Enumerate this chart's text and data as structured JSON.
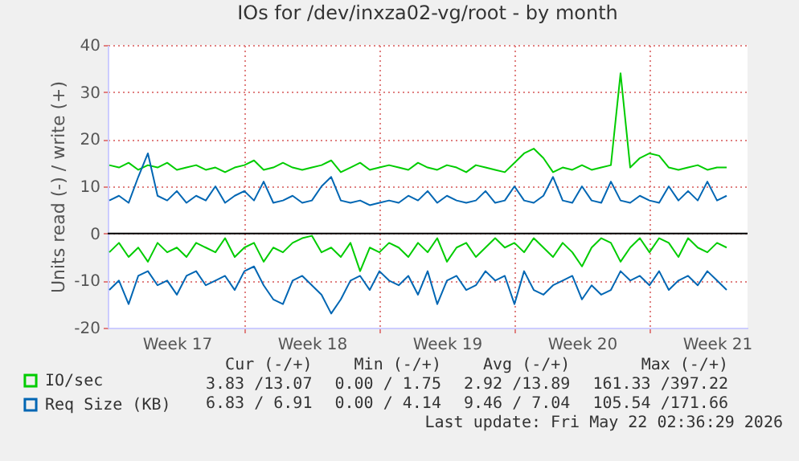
{
  "chart_data": {
    "type": "line",
    "title": "IOs for /dev/inxza02-vg/root - by month",
    "ylabel": "Units read (-) / write (+)",
    "x": [
      "2026-04-20T00:00",
      "2026-04-20T12:00",
      "2026-04-21T00:00",
      "2026-04-21T12:00",
      "2026-04-22T00:00",
      "2026-04-22T12:00",
      "2026-04-23T00:00",
      "2026-04-23T12:00",
      "2026-04-24T00:00",
      "2026-04-24T12:00",
      "2026-04-25T00:00",
      "2026-04-25T12:00",
      "2026-04-26T00:00",
      "2026-04-26T12:00",
      "2026-04-27T00:00",
      "2026-04-27T12:00",
      "2026-04-28T00:00",
      "2026-04-28T12:00",
      "2026-04-29T00:00",
      "2026-04-29T12:00",
      "2026-04-30T00:00",
      "2026-04-30T12:00",
      "2026-05-01T00:00",
      "2026-05-01T12:00",
      "2026-05-02T00:00",
      "2026-05-02T12:00",
      "2026-05-03T00:00",
      "2026-05-03T12:00",
      "2026-05-04T00:00",
      "2026-05-04T12:00",
      "2026-05-05T00:00",
      "2026-05-05T12:00",
      "2026-05-06T00:00",
      "2026-05-06T12:00",
      "2026-05-07T00:00",
      "2026-05-07T12:00",
      "2026-05-08T00:00",
      "2026-05-08T12:00",
      "2026-05-09T00:00",
      "2026-05-09T12:00",
      "2026-05-10T00:00",
      "2026-05-10T12:00",
      "2026-05-11T00:00",
      "2026-05-11T12:00",
      "2026-05-12T00:00",
      "2026-05-12T12:00",
      "2026-05-13T00:00",
      "2026-05-13T12:00",
      "2026-05-14T00:00",
      "2026-05-14T12:00",
      "2026-05-15T00:00",
      "2026-05-15T12:00",
      "2026-05-16T00:00",
      "2026-05-16T12:00",
      "2026-05-17T00:00",
      "2026-05-17T12:00",
      "2026-05-18T00:00",
      "2026-05-18T12:00",
      "2026-05-19T00:00",
      "2026-05-19T12:00",
      "2026-05-20T00:00",
      "2026-05-20T12:00",
      "2026-05-21T00:00",
      "2026-05-21T12:00",
      "2026-05-22T00:00"
    ],
    "series": [
      {
        "name": "IO/sec",
        "color": "#00cc00",
        "values": [
          14.5,
          14,
          15,
          13.5,
          14.5,
          14,
          15,
          13.5,
          14,
          14.5,
          13.5,
          14,
          13,
          14,
          14.5,
          15.5,
          13.5,
          14,
          15,
          14,
          13.5,
          14,
          14.5,
          15.5,
          13,
          14,
          15,
          13.5,
          14,
          14.5,
          14,
          13.5,
          15,
          14,
          13.5,
          14.5,
          14,
          13,
          14.5,
          14,
          13.5,
          13,
          15,
          17,
          18,
          16,
          13,
          14,
          13.5,
          14.5,
          13.5,
          14,
          14.5,
          34,
          14,
          16,
          17,
          16.5,
          14,
          13.5,
          14,
          14.5,
          13.5,
          14,
          14
        ]
      },
      {
        "color": "#00cc00",
        "values": [
          -4,
          -2,
          -5,
          -3,
          -6,
          -2,
          -4,
          -3,
          -5,
          -2,
          -3,
          -4,
          -1,
          -5,
          -3,
          -2,
          -6,
          -3,
          -4,
          -2,
          -1,
          -0.5,
          -4,
          -3,
          -5,
          -2,
          -8,
          -3,
          -4,
          -2,
          -3,
          -5,
          -2,
          -4,
          -1,
          -6,
          -3,
          -2,
          -5,
          -3,
          -1,
          -3,
          -2,
          -4,
          -1,
          -3,
          -5,
          -2,
          -4,
          -7,
          -3,
          -1,
          -2,
          -6,
          -3,
          -1,
          -4,
          -1,
          -2,
          -5,
          -1,
          -3,
          -4,
          -2,
          -3
        ]
      },
      {
        "name": "Req Size (KB)",
        "color": "#0066b3",
        "values": [
          7,
          8,
          6.5,
          12,
          17,
          8,
          7,
          9,
          6.5,
          8,
          7,
          10,
          6.5,
          8,
          9,
          7,
          11,
          6.5,
          7,
          8,
          6.5,
          7,
          10,
          12,
          7,
          6.5,
          7,
          6,
          6.5,
          7,
          6.5,
          8,
          7,
          9,
          6.5,
          8,
          7,
          6.5,
          7,
          9,
          6.5,
          7,
          10,
          7,
          6.5,
          8,
          12,
          7,
          6.5,
          10,
          7,
          6.5,
          11,
          7,
          6.5,
          8,
          7,
          6.5,
          10,
          7,
          9,
          7,
          11,
          7,
          8
        ]
      },
      {
        "color": "#0066b3",
        "values": [
          -12,
          -10,
          -15,
          -9,
          -8,
          -11,
          -10,
          -13,
          -9,
          -8,
          -11,
          -10,
          -9,
          -12,
          -8,
          -7,
          -11,
          -14,
          -15,
          -10,
          -9,
          -11,
          -13,
          -17,
          -14,
          -10,
          -9,
          -12,
          -8,
          -10,
          -11,
          -9,
          -13,
          -8,
          -15,
          -10,
          -9,
          -12,
          -11,
          -8,
          -10,
          -9,
          -15,
          -8,
          -12,
          -13,
          -11,
          -10,
          -9,
          -14,
          -11,
          -13,
          -12,
          -8,
          -10,
          -9,
          -11,
          -8,
          -12,
          -10,
          -9,
          -11,
          -8,
          -10,
          -12
        ]
      }
    ],
    "xlim": [
      "2026-04-19T22:00",
      "2026-05-23T02:00"
    ],
    "xticks": [
      {
        "value": "2026-04-23T12:00",
        "label": "Week 17"
      },
      {
        "value": "2026-04-27",
        "label": null
      },
      {
        "value": "2026-04-30T12:00",
        "label": "Week 18"
      },
      {
        "value": "2026-05-04",
        "label": null
      },
      {
        "value": "2026-05-07T12:00",
        "label": "Week 19"
      },
      {
        "value": "2026-05-11",
        "label": null
      },
      {
        "value": "2026-05-14T12:00",
        "label": "Week 20"
      },
      {
        "value": "2026-05-18",
        "label": null
      },
      {
        "value": "2026-05-21T12:00",
        "label": "Week 21"
      }
    ],
    "ylim": [
      -20,
      40
    ],
    "yticks": [
      -20,
      -10,
      0,
      10,
      20,
      30,
      40
    ],
    "grid": true,
    "legend": "bottom left",
    "ref_lines": [
      {
        "axis": "y",
        "value": 0,
        "color": "#000000"
      }
    ],
    "annotations": [
      "Cur (-/+)",
      "Min (-/+)",
      "Avg (-/+)",
      "Max (-/+)",
      "3.83 /13.07",
      "0.00 / 1.75",
      "2.92 /13.89",
      "161.33 /397.22",
      "6.83 / 6.91",
      "0.00 / 4.14",
      "9.46 / 7.04",
      "105.54 /171.66",
      "Last update: Fri May 22 02:36:29 2026"
    ]
  }
}
